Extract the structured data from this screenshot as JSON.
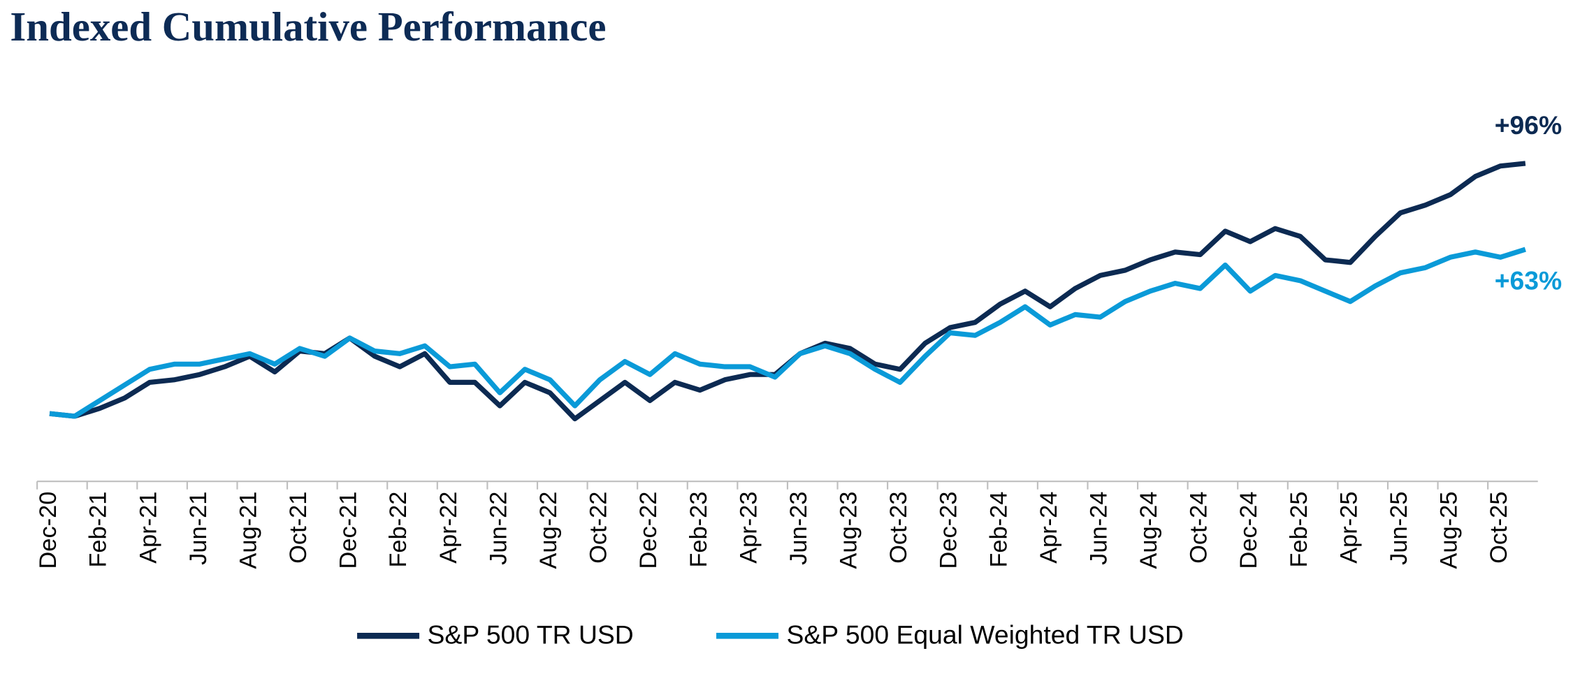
{
  "chart_data": {
    "type": "line",
    "title": "Indexed Cumulative Performance",
    "categories": [
      "Dec-20",
      null,
      "Feb-21",
      null,
      "Apr-21",
      null,
      "Jun-21",
      null,
      "Aug-21",
      null,
      "Oct-21",
      null,
      "Dec-21",
      null,
      "Feb-22",
      null,
      "Apr-22",
      null,
      "Jun-22",
      null,
      "Aug-22",
      null,
      "Oct-22",
      null,
      "Dec-22",
      null,
      "Feb-23",
      null,
      "Apr-23",
      null,
      "Jun-23",
      null,
      "Aug-23",
      null,
      "Oct-23",
      null,
      "Dec-23",
      null,
      "Feb-24",
      null,
      "Apr-24",
      null,
      "Jun-24",
      null,
      "Aug-24",
      null,
      "Oct-24",
      null,
      "Dec-24",
      null,
      "Feb-25",
      null,
      "Apr-25",
      null,
      "Jun-25",
      null,
      "Aug-25",
      null,
      "Oct-25",
      null
    ],
    "series": [
      {
        "name": "S&P 500 TR USD",
        "color": "#0c2a52",
        "values": [
          0,
          -1,
          2,
          6,
          12,
          13,
          15,
          18,
          22,
          16,
          24,
          23,
          29,
          22,
          18,
          23,
          12,
          12,
          3,
          12,
          8,
          -2,
          5,
          12,
          5,
          12,
          9,
          13,
          15,
          15,
          23,
          27,
          25,
          19,
          17,
          27,
          33,
          35,
          42,
          47,
          41,
          48,
          53,
          55,
          59,
          62,
          61,
          70,
          66,
          71,
          68,
          59,
          58,
          68,
          77,
          80,
          84,
          91,
          95,
          96
        ],
        "value_labels": [
          null,
          null,
          null,
          null,
          null,
          null,
          null,
          null,
          null,
          null,
          null,
          null,
          null,
          null,
          null,
          null,
          null,
          null,
          null,
          null,
          null,
          null,
          null,
          null,
          null,
          null,
          null,
          null,
          null,
          null,
          null,
          null,
          null,
          null,
          null,
          null,
          null,
          null,
          null,
          null,
          null,
          null,
          null,
          null,
          null,
          null,
          null,
          null,
          null,
          null,
          null,
          null,
          null,
          null,
          null,
          null,
          null,
          null,
          null,
          "+96%"
        ]
      },
      {
        "name": "S&P 500 Equal Weighted TR USD",
        "color": "#0a9ad8",
        "values": [
          0,
          -1,
          5,
          11,
          17,
          19,
          19,
          21,
          23,
          19,
          25,
          22,
          29,
          24,
          23,
          26,
          18,
          19,
          8,
          17,
          13,
          3,
          13,
          20,
          15,
          23,
          19,
          18,
          18,
          14,
          23,
          26,
          23,
          17,
          12,
          22,
          31,
          30,
          35,
          41,
          34,
          38,
          37,
          43,
          47,
          50,
          48,
          57,
          47,
          53,
          51,
          47,
          43,
          49,
          54,
          56,
          60,
          62,
          60,
          63
        ],
        "value_labels": [
          null,
          null,
          null,
          null,
          null,
          null,
          null,
          null,
          null,
          null,
          null,
          null,
          null,
          null,
          null,
          null,
          null,
          null,
          null,
          null,
          null,
          null,
          null,
          null,
          null,
          null,
          null,
          null,
          null,
          null,
          null,
          null,
          null,
          null,
          null,
          null,
          null,
          null,
          null,
          null,
          null,
          null,
          null,
          null,
          null,
          null,
          null,
          null,
          null,
          null,
          null,
          null,
          null,
          null,
          null,
          null,
          null,
          null,
          null,
          "+63%"
        ]
      }
    ],
    "ylim": [
      -26,
      120
    ]
  }
}
